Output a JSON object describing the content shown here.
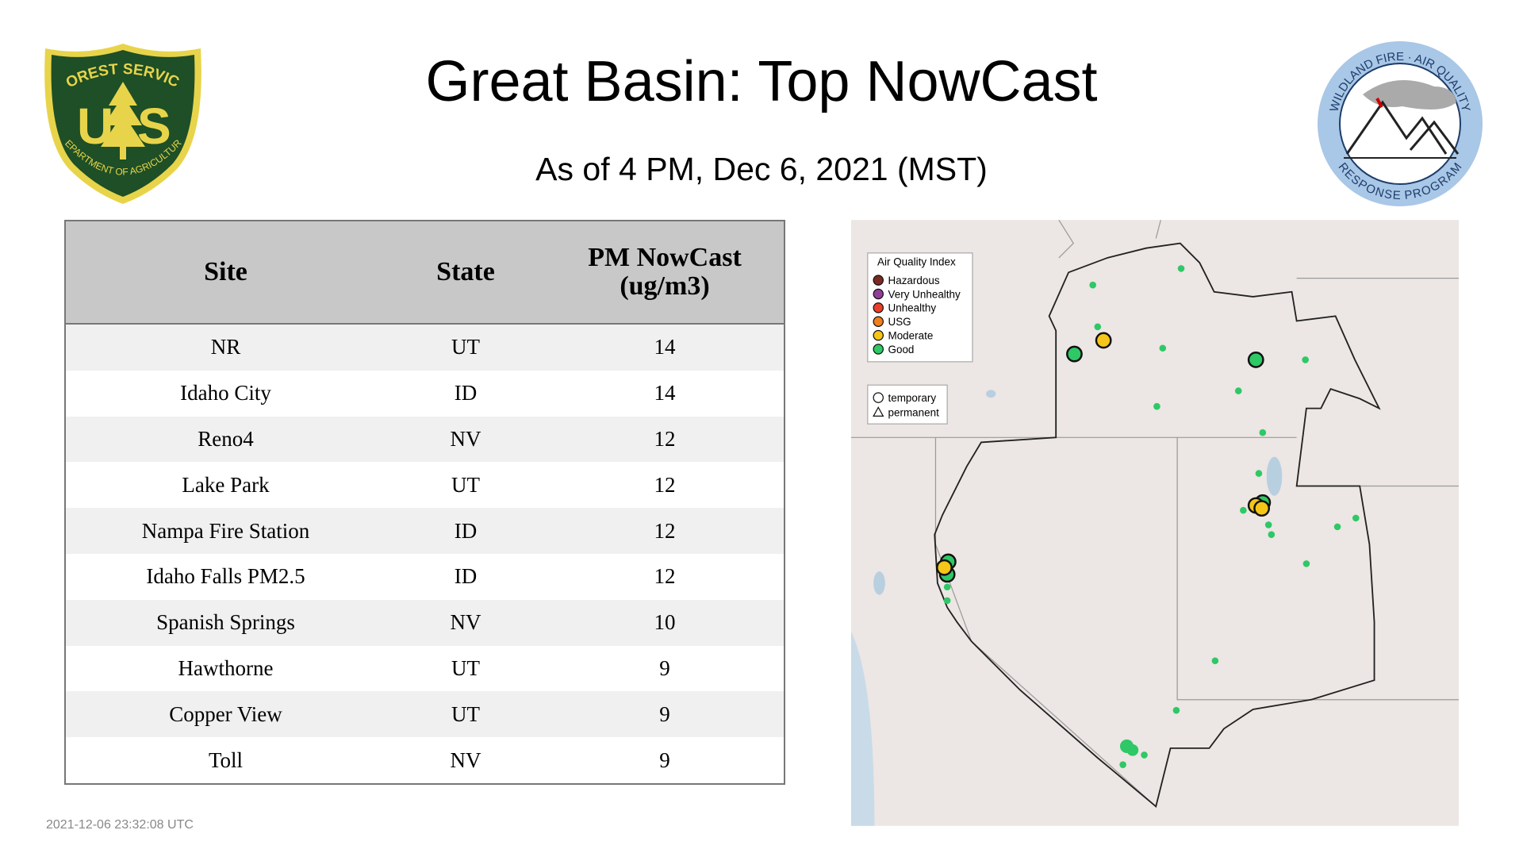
{
  "header": {
    "title": "Great Basin: Top NowCast",
    "subtitle": "As of  4 PM, Dec  6, 2021 (MST)"
  },
  "logos": {
    "forest_service": {
      "top": "FOREST SERVICE",
      "left": "U",
      "right": "S",
      "bottom": "DEPARTMENT OF AGRICULTURE"
    },
    "air_quality": {
      "top": "WILDLAND FIRE · AIR QUALITY",
      "bottom": "RESPONSE PROGRAM"
    }
  },
  "table": {
    "columns": [
      "Site",
      "State",
      "PM NowCast (ug/m3)"
    ],
    "rows": [
      [
        "NR",
        "UT",
        "14"
      ],
      [
        "Idaho City",
        "ID",
        "14"
      ],
      [
        "Reno4",
        "NV",
        "12"
      ],
      [
        "Lake Park",
        "UT",
        "12"
      ],
      [
        "Nampa Fire Station",
        "ID",
        "12"
      ],
      [
        "Idaho Falls PM2.5",
        "ID",
        "12"
      ],
      [
        "Spanish Springs",
        "NV",
        "10"
      ],
      [
        "Hawthorne",
        "UT",
        "9"
      ],
      [
        "Copper View",
        "UT",
        "9"
      ],
      [
        "Toll",
        "NV",
        "9"
      ]
    ]
  },
  "map": {
    "legend": {
      "title": "Air Quality Index",
      "items": [
        {
          "label": "Hazardous",
          "color": "#7e2a24"
        },
        {
          "label": "Very Unhealthy",
          "color": "#8f3f97"
        },
        {
          "label": "Unhealthy",
          "color": "#e8402a"
        },
        {
          "label": "USG",
          "color": "#f07f1e"
        },
        {
          "label": "Moderate",
          "color": "#f5c518"
        },
        {
          "label": "Good",
          "color": "#2ec866"
        }
      ],
      "shapes": [
        "temporary",
        "permanent"
      ]
    }
  },
  "footer": {
    "timestamp": "2021-12-06 23:32:08 UTC"
  }
}
